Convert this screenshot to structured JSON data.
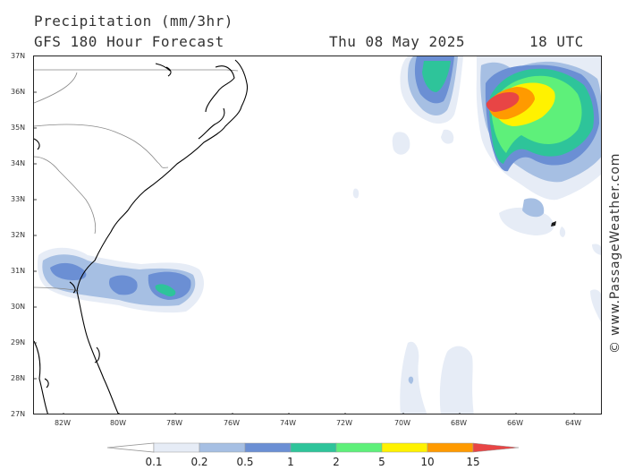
{
  "header": {
    "title": "Precipitation (mm/3hr)",
    "subtitle": "GFS 180 Hour Forecast",
    "date": "Thu 08 May 2025",
    "time": "18 UTC"
  },
  "map": {
    "lat_labels": [
      "37N",
      "36N",
      "35N",
      "34N",
      "33N",
      "32N",
      "31N",
      "30N",
      "29N",
      "28N",
      "27N"
    ],
    "lon_labels": [
      "82W",
      "80W",
      "78W",
      "76W",
      "74W",
      "72W",
      "70W",
      "68W",
      "66W",
      "64W"
    ],
    "lat_range": [
      27,
      37
    ],
    "lon_range": [
      -83,
      -63
    ],
    "precip_areas": [
      {
        "region": "off Georgia/Florida coast",
        "lon": -79.3,
        "lat": 30.6,
        "max_mm": 2
      },
      {
        "region": "North Atlantic east of Carolinas",
        "lon": -66.5,
        "lat": 35.6,
        "max_mm": 15
      },
      {
        "region": "east of Outer Banks",
        "lon": -70.0,
        "lat": 36.0,
        "max_mm": 2
      }
    ]
  },
  "credit": "© www.PassageWeather.com",
  "legend": {
    "labels": [
      "0.1",
      "0.2",
      "0.5",
      "1",
      "2",
      "5",
      "10",
      "15"
    ],
    "colors": [
      "#ffffff",
      "#e6ecf6",
      "#a6bfe3",
      "#6b8fd4",
      "#2ec49a",
      "#5ef07a",
      "#fff200",
      "#ff9a00",
      "#e84545"
    ]
  }
}
